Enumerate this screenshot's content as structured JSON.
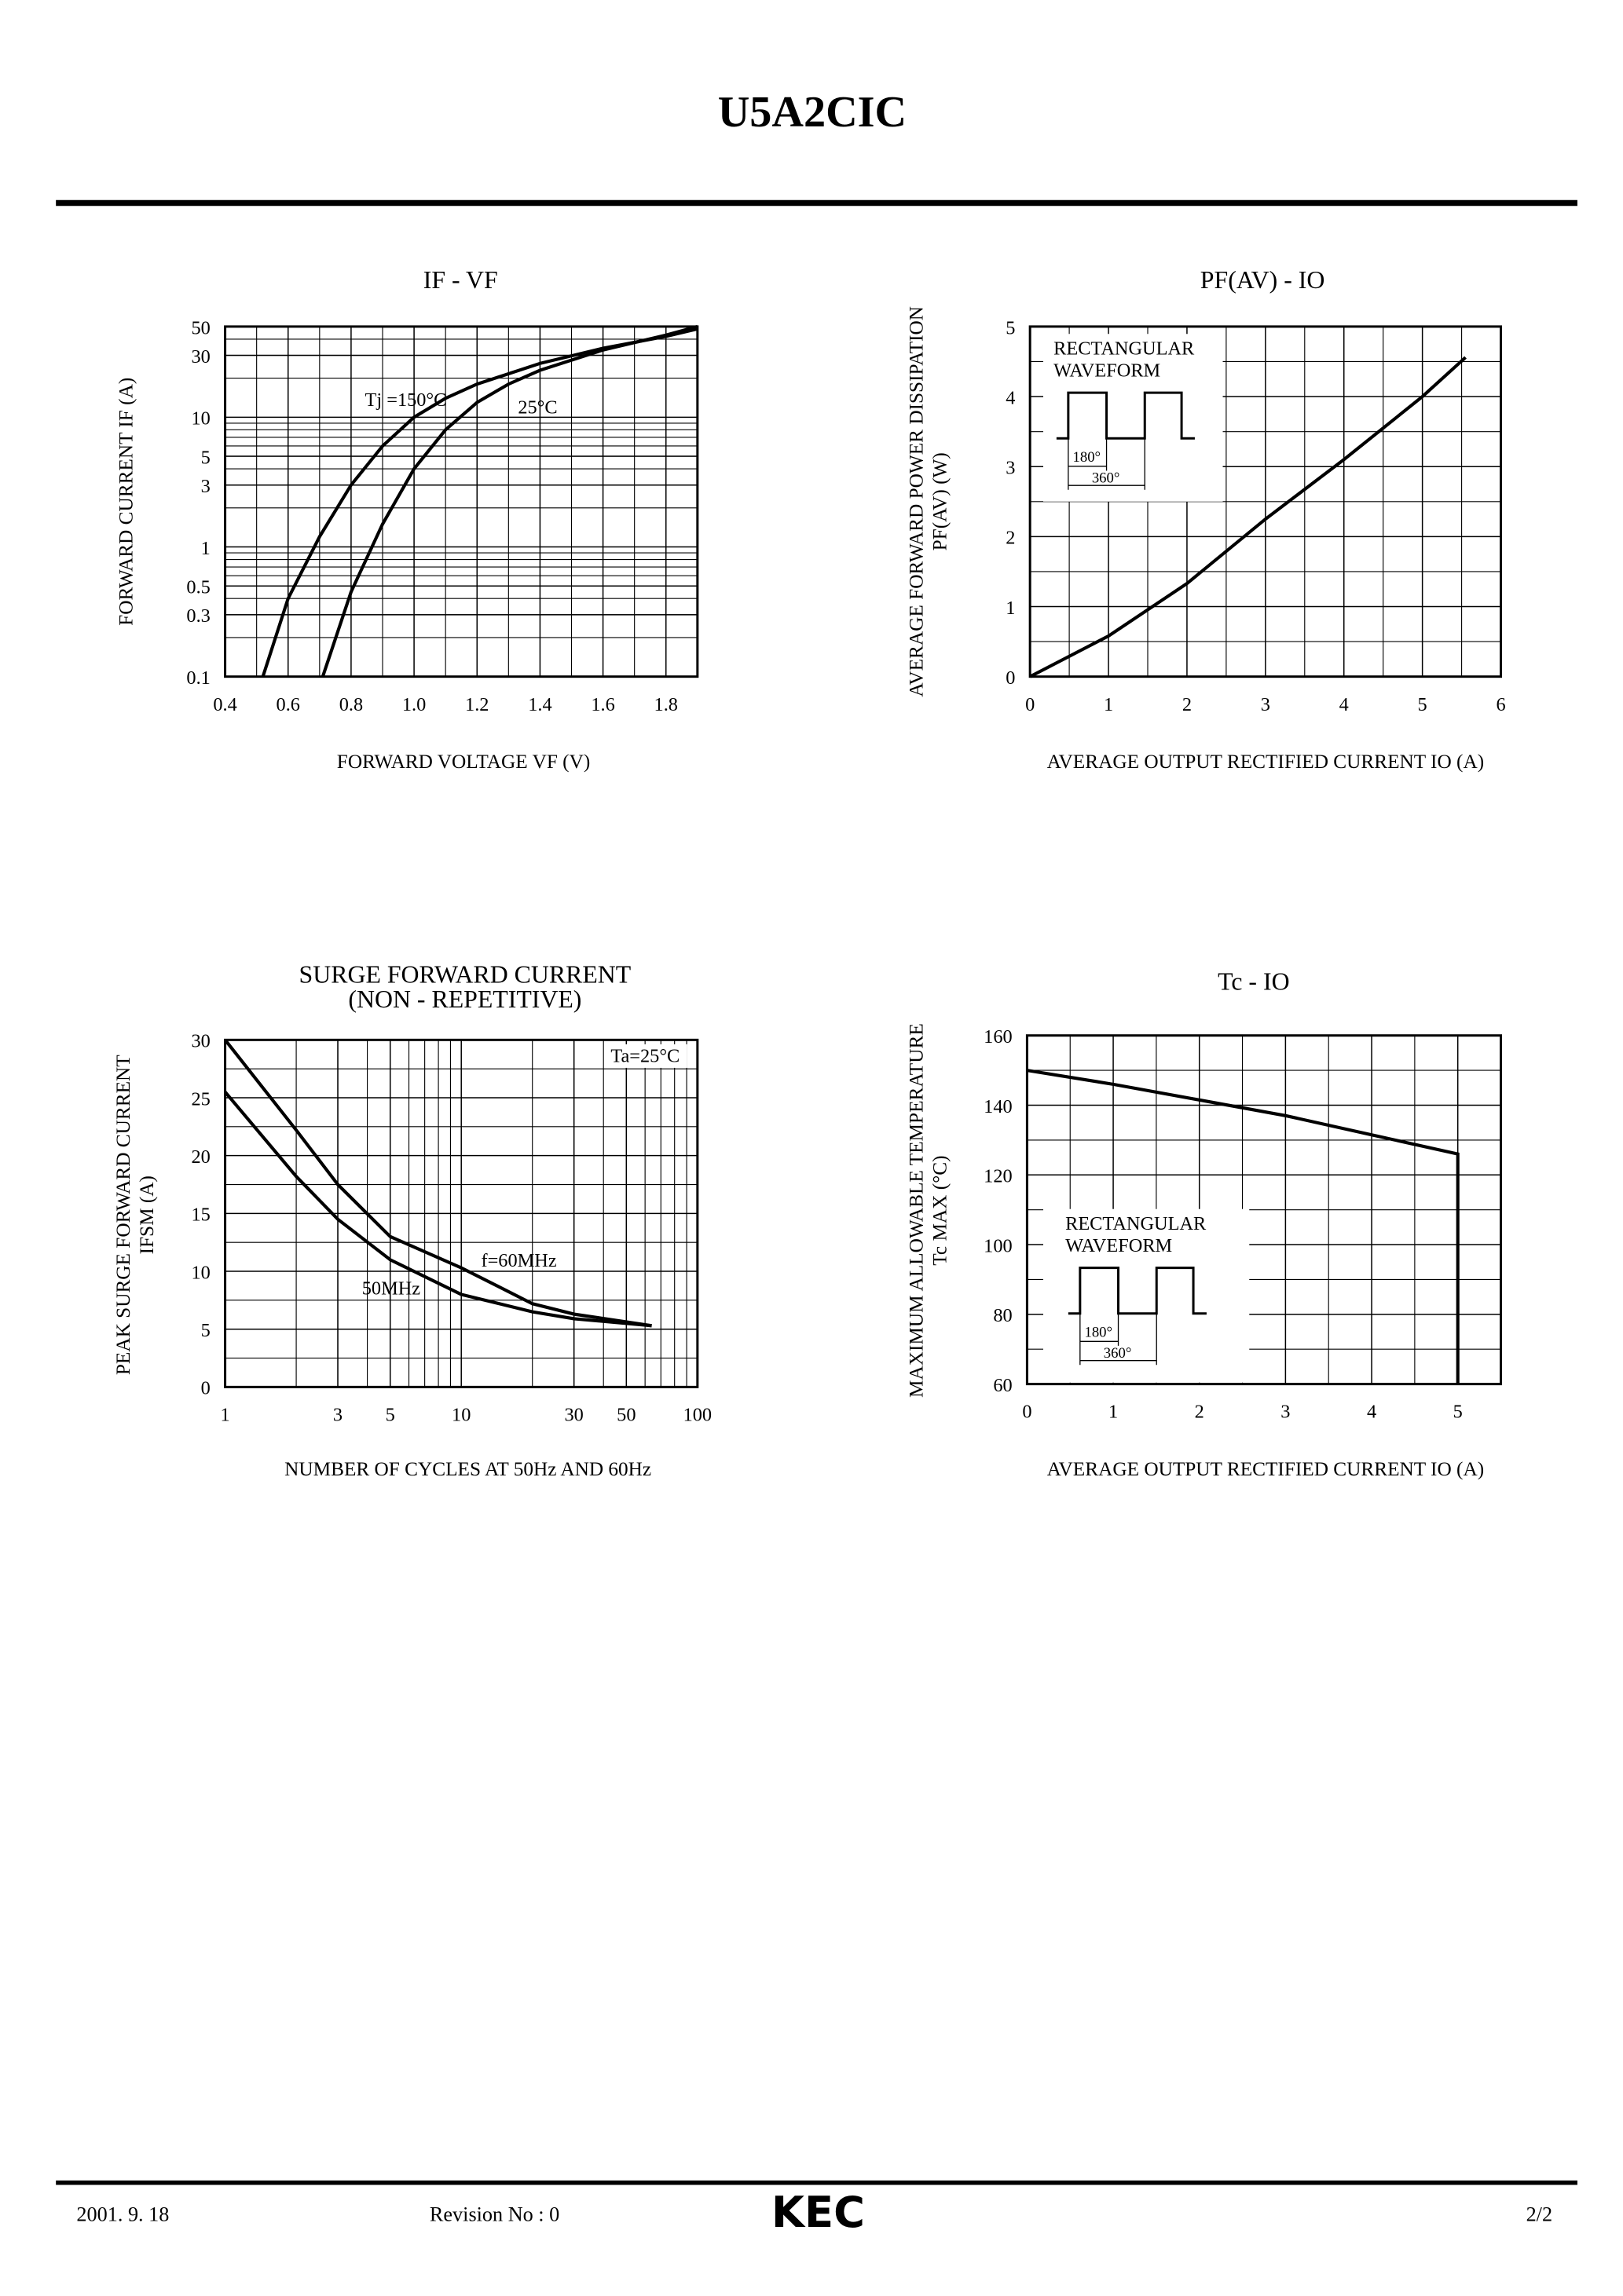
{
  "header": {
    "title": "U5A2CIC"
  },
  "footer": {
    "date": "2001. 9. 18",
    "revision": "Revision No : 0",
    "logo": "KEC",
    "page": "2/2"
  },
  "chart_data": [
    {
      "type": "line",
      "title": [
        "IF - VF"
      ],
      "xlabel": "FORWARD VOLTAGE VF (V)",
      "ylabel": [
        "FORWARD CURRENT IF (A)"
      ],
      "xlim": [
        0.4,
        1.9
      ],
      "xticks": [
        0.4,
        0.6,
        0.8,
        {
          "value": 1,
          "label": "1.0"
        },
        1.2,
        1.4,
        1.6,
        1.8
      ],
      "ylim": [
        0.1,
        50
      ],
      "yticks": [
        0.1,
        0.3,
        0.5,
        1,
        3,
        5,
        10,
        30,
        50
      ],
      "ylog": true,
      "grid": true,
      "series": [
        {
          "name": "Tj =150°C",
          "color": "#000000",
          "x": [
            0.52,
            0.6,
            0.7,
            0.8,
            0.9,
            1.0,
            1.1,
            1.2,
            1.4,
            1.6,
            1.8,
            1.9
          ],
          "values": [
            0.1,
            0.4,
            1.2,
            3,
            6,
            10,
            14,
            18,
            26,
            34,
            42,
            48
          ]
        },
        {
          "name": "25°C",
          "color": "#000000",
          "x": [
            0.71,
            0.8,
            0.9,
            1.0,
            1.1,
            1.2,
            1.3,
            1.4,
            1.6,
            1.8,
            1.9
          ],
          "values": [
            0.1,
            0.45,
            1.5,
            4,
            8,
            13,
            18,
            23,
            33,
            43,
            50
          ]
        }
      ]
    },
    {
      "type": "line",
      "title": [
        "PF(AV) - IO"
      ],
      "xlabel": "AVERAGE OUTPUT RECTIFIED CURRENT IO (A)",
      "ylabel": [
        "AVERAGE FORWARD POWER DISSIPATION",
        "PF(AV) (W)"
      ],
      "xlim": [
        0,
        6
      ],
      "xticks": [
        0,
        1,
        2,
        3,
        4,
        5,
        6
      ],
      "ylim": [
        0,
        5
      ],
      "yticks": [
        0,
        1,
        2,
        3,
        4,
        5
      ],
      "grid": true,
      "annotations": [
        "RECTANGULAR",
        "WAVEFORM",
        "180°",
        "360°"
      ],
      "series": [
        {
          "name": "",
          "color": "#000000",
          "x": [
            0,
            1,
            2,
            3,
            4,
            5,
            5.55
          ],
          "values": [
            0,
            0.58,
            1.33,
            2.25,
            3.1,
            4.0,
            4.56
          ]
        }
      ]
    },
    {
      "type": "line",
      "title": [
        "SURGE FORWARD CURRENT",
        "(NON - REPETITIVE)"
      ],
      "xlabel": "NUMBER OF CYCLES AT 50Hz AND 60Hz",
      "ylabel": [
        "PEAK SURGE FORWARD CURRENT",
        "IFSM (A)"
      ],
      "xlim": [
        1,
        100
      ],
      "xticks": [
        1,
        3,
        5,
        10,
        30,
        50,
        100
      ],
      "xlog": true,
      "ylim": [
        0,
        30
      ],
      "yticks": [
        0,
        5,
        10,
        15,
        20,
        25,
        30
      ],
      "grid": true,
      "annotations": [
        "Ta=25°C"
      ],
      "series": [
        {
          "name": "f=60MHz",
          "color": "#000000",
          "x": [
            1,
            2,
            3,
            5,
            10,
            20,
            30,
            64
          ],
          "values": [
            30,
            22.2,
            17.5,
            13,
            10.3,
            7.2,
            6.3,
            5.3
          ]
        },
        {
          "name": "50MHz",
          "color": "#000000",
          "x": [
            1,
            2,
            3,
            5,
            10,
            20,
            30,
            64
          ],
          "values": [
            25.5,
            18.2,
            14.5,
            11,
            8,
            6.5,
            5.9,
            5.3
          ]
        }
      ]
    },
    {
      "type": "line",
      "title": [
        "Tc - IO"
      ],
      "xlabel": "AVERAGE OUTPUT RECTIFIED  CURRENT IO (A)",
      "ylabel": [
        "MAXIMUM ALLOWABLE TEMPERATURE",
        "Tc MAX (°C)"
      ],
      "xlim": [
        0,
        5.5
      ],
      "xticks": [
        0,
        1,
        2,
        3,
        4,
        5
      ],
      "ylim": [
        60,
        160
      ],
      "yticks": [
        60,
        80,
        100,
        120,
        140,
        160
      ],
      "grid": true,
      "annotations": [
        "RECTANGULAR",
        "WAVEFORM",
        "180°",
        "360°"
      ],
      "series": [
        {
          "name": "",
          "color": "#000000",
          "x": [
            0,
            1,
            2,
            3,
            4,
            5,
            5
          ],
          "values": [
            150,
            146,
            141.5,
            137,
            131.5,
            126,
            60
          ]
        }
      ]
    }
  ]
}
